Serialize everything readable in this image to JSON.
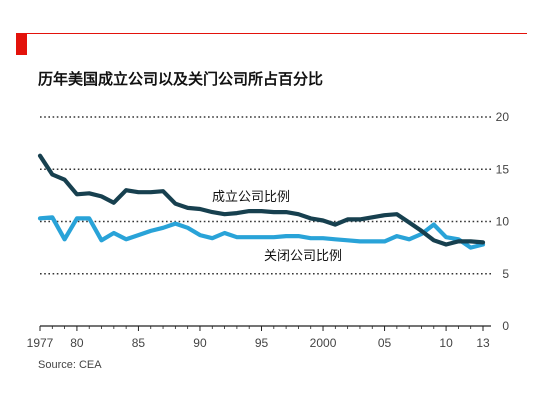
{
  "colors": {
    "accent": "#e3120b",
    "openings": "#17404f",
    "closures": "#29a3d8",
    "grid": "#333333"
  },
  "chart_data": {
    "type": "line",
    "title": "历年美国成立公司以及关门公司所占百分比",
    "source": "Source: CEA",
    "xlabel": "",
    "ylabel": "",
    "xlim": [
      1977,
      2013
    ],
    "ylim": [
      0,
      20
    ],
    "y_ticks": [
      "0",
      "5",
      "10",
      "15",
      "20"
    ],
    "x_ticks": [
      {
        "value": 1977,
        "label": "1977"
      },
      {
        "value": 1980,
        "label": "80"
      },
      {
        "value": 1985,
        "label": "85"
      },
      {
        "value": 1990,
        "label": "90"
      },
      {
        "value": 1995,
        "label": "95"
      },
      {
        "value": 2000,
        "label": "2000"
      },
      {
        "value": 2005,
        "label": "05"
      },
      {
        "value": 2010,
        "label": "10"
      },
      {
        "value": 2013,
        "label": "13"
      }
    ],
    "grid": true,
    "legend": "inline-labels",
    "x": [
      1977,
      1978,
      1979,
      1980,
      1981,
      1982,
      1983,
      1984,
      1985,
      1986,
      1987,
      1988,
      1989,
      1990,
      1991,
      1992,
      1993,
      1994,
      1995,
      1996,
      1997,
      1998,
      1999,
      2000,
      2001,
      2002,
      2003,
      2004,
      2005,
      2006,
      2007,
      2008,
      2009,
      2010,
      2011,
      2012,
      2013
    ],
    "series": [
      {
        "name": "成立公司比例",
        "values": [
          16.3,
          14.5,
          14.0,
          12.6,
          12.7,
          12.4,
          11.8,
          13.0,
          12.8,
          12.8,
          12.9,
          11.7,
          11.3,
          11.2,
          10.9,
          10.7,
          10.8,
          11.0,
          11.0,
          10.9,
          10.9,
          10.7,
          10.3,
          10.1,
          9.7,
          10.2,
          10.2,
          10.4,
          10.6,
          10.7,
          9.9,
          9.1,
          8.2,
          7.8,
          8.1,
          8.1,
          8.0
        ]
      },
      {
        "name": "关闭公司比例",
        "values": [
          10.3,
          10.4,
          8.3,
          10.3,
          10.3,
          8.2,
          8.9,
          8.3,
          8.7,
          9.1,
          9.4,
          9.8,
          9.4,
          8.7,
          8.4,
          8.9,
          8.5,
          8.5,
          8.5,
          8.5,
          8.6,
          8.6,
          8.4,
          8.4,
          8.3,
          8.2,
          8.1,
          8.1,
          8.1,
          8.6,
          8.3,
          8.8,
          9.7,
          8.5,
          8.3,
          7.5,
          7.8
        ]
      }
    ]
  }
}
